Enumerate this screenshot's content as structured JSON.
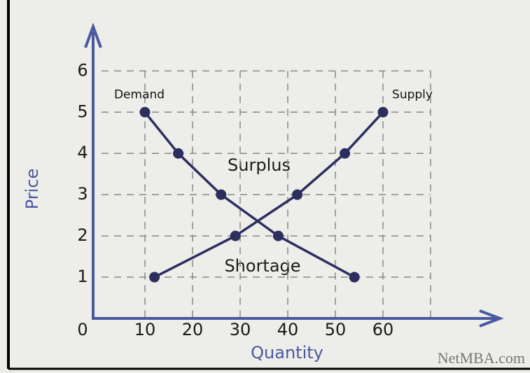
{
  "chart_data": {
    "type": "line",
    "xlabel": "Quantity",
    "ylabel": "Price",
    "xlim": [
      0,
      70
    ],
    "ylim": [
      0,
      6.6
    ],
    "xticks": [
      0,
      10,
      20,
      30,
      40,
      50,
      60
    ],
    "yticks": [
      1,
      2,
      3,
      4,
      5,
      6
    ],
    "grid": true,
    "series": [
      {
        "name": "Demand",
        "color": "#2c2f5e",
        "x": [
          10,
          17,
          26,
          38,
          54
        ],
        "values": [
          5,
          4,
          3,
          2,
          1
        ]
      },
      {
        "name": "Supply",
        "color": "#2c2f5e",
        "x": [
          12,
          29,
          42,
          52,
          60
        ],
        "values": [
          1,
          2,
          3,
          4,
          5
        ]
      }
    ],
    "annotations": [
      "Surplus",
      "Shortage"
    ],
    "watermark": "NetMBA.com"
  }
}
